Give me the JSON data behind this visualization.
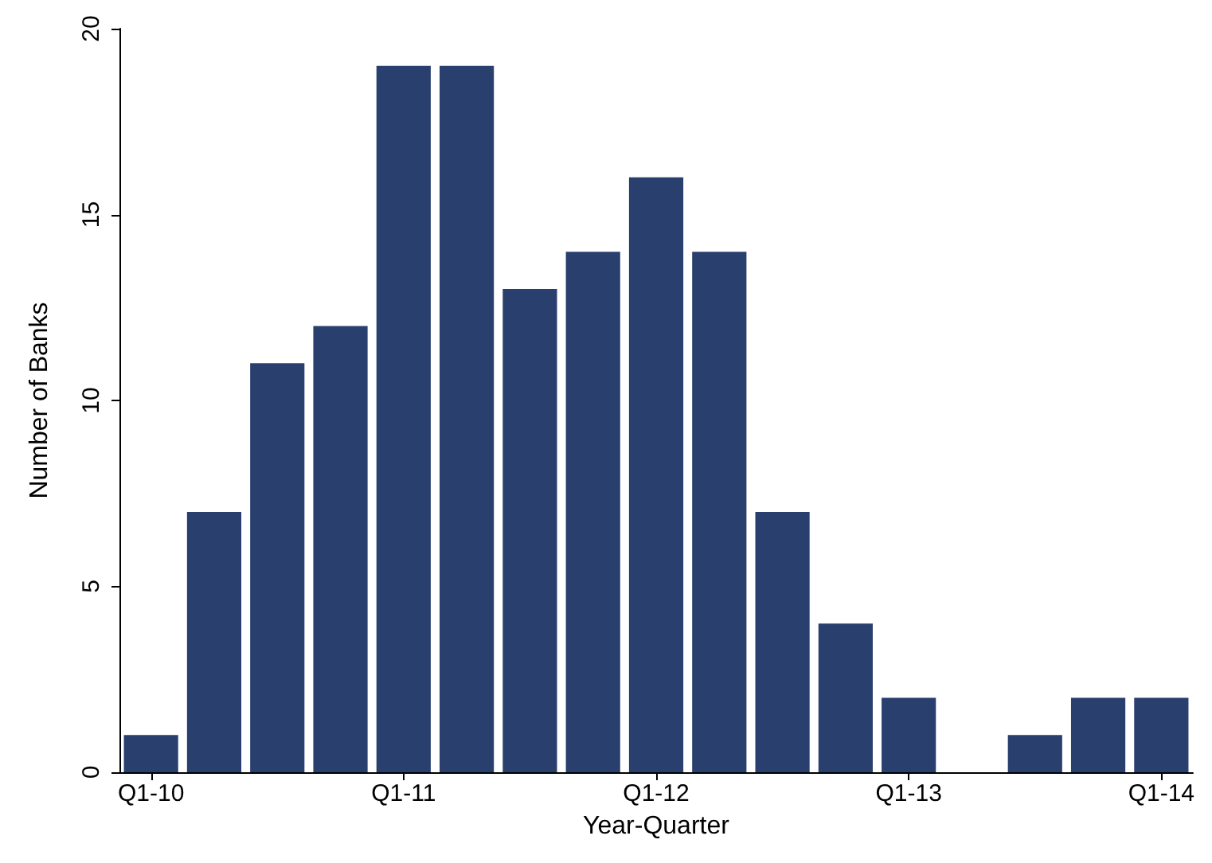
{
  "chart_data": {
    "type": "bar",
    "xlabel": "Year-Quarter",
    "ylabel": "Number of Banks",
    "categories": [
      "Q1-10",
      null,
      null,
      null,
      "Q1-11",
      null,
      null,
      null,
      "Q1-12",
      null,
      null,
      null,
      "Q1-13",
      null,
      null,
      null,
      "Q1-14"
    ],
    "values": [
      1,
      7,
      11,
      12,
      19,
      19,
      13,
      14,
      16,
      14,
      7,
      4,
      2,
      0,
      1,
      2,
      2
    ],
    "color": "#293f6e",
    "ylim": [
      0,
      20
    ],
    "yticks": [
      0,
      5,
      10,
      15,
      20
    ],
    "grid": false
  }
}
